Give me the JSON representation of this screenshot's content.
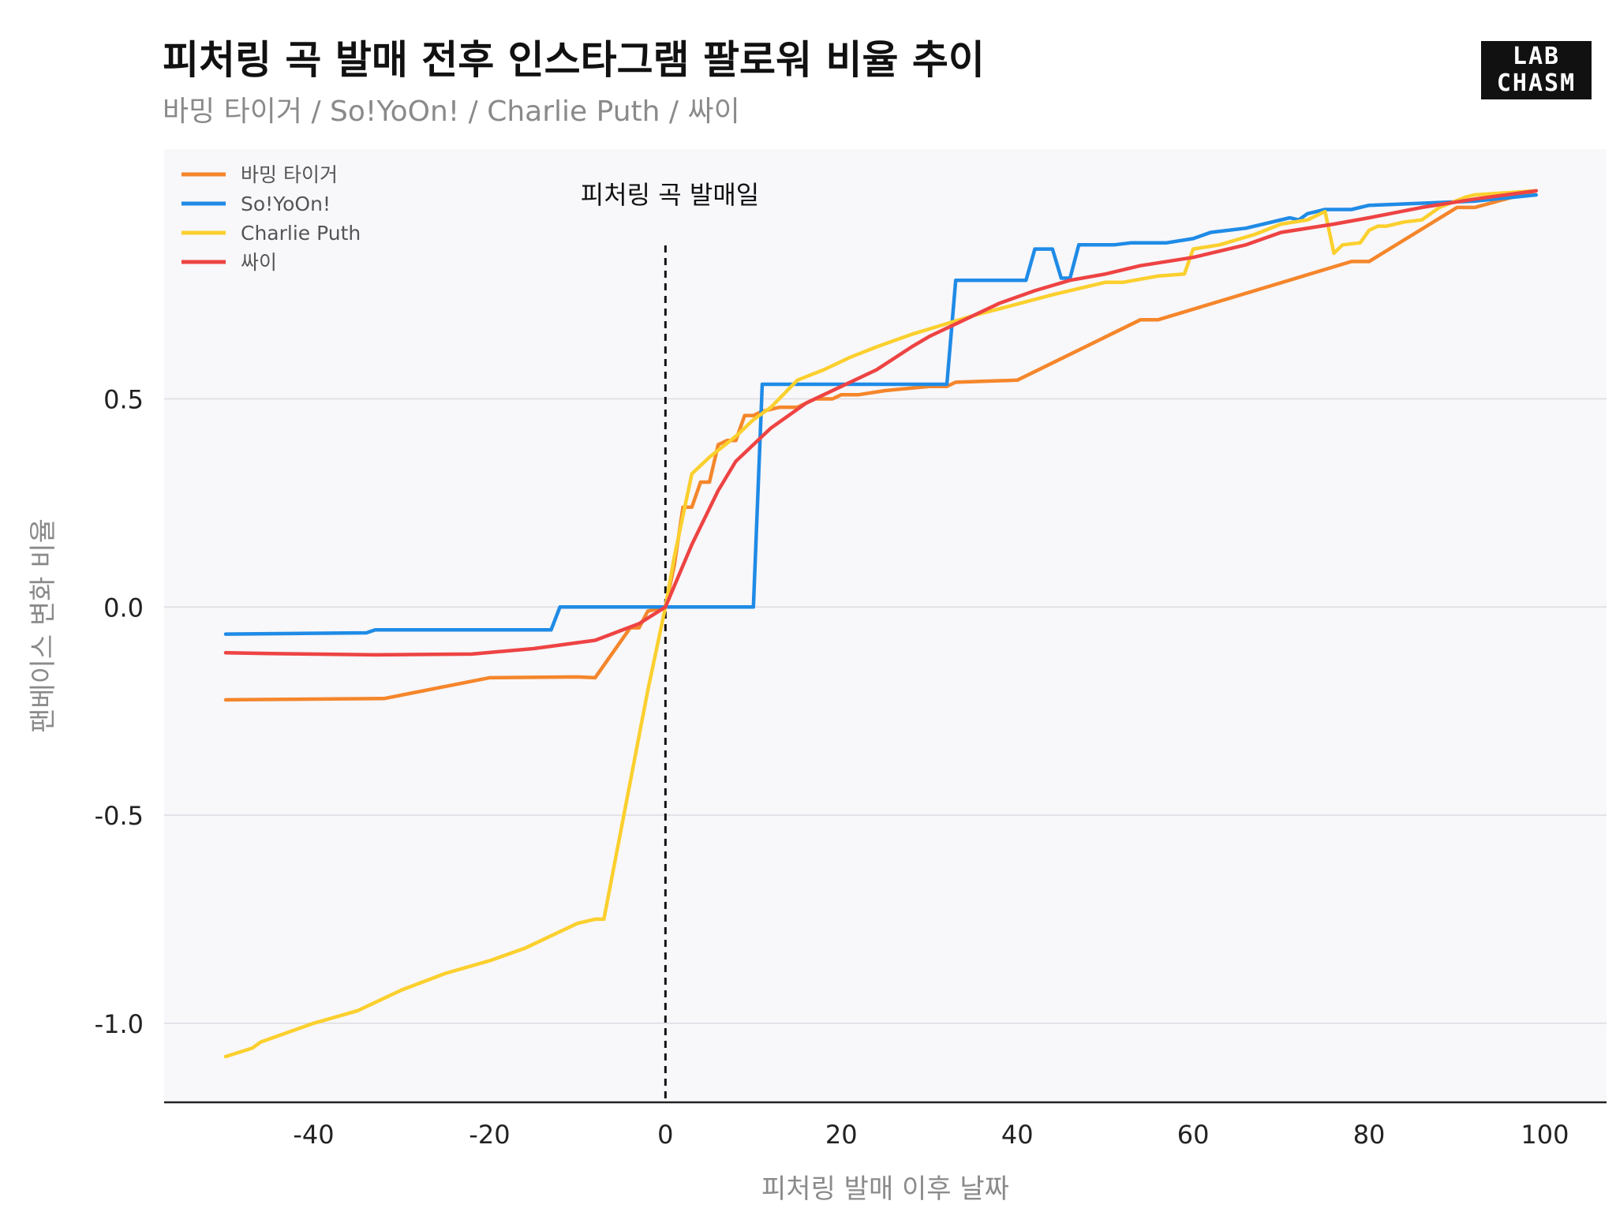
{
  "header": {
    "title": "피처링 곡 발매 전후 인스타그램 팔로워 비율 추이",
    "subtitle": "바밍 타이거 / So!YoOn! / Charlie Puth / 싸이"
  },
  "logo": {
    "line1": "LAB",
    "line2": "CHASM"
  },
  "colors": {
    "plot_bg": "#f8f7fa",
    "grid": "#dddbe2",
    "axis": "#222222",
    "tick_text": "#222222",
    "label_text": "#8a8a8a"
  },
  "chart_data": {
    "type": "line",
    "title": "피처링 곡 발매 전후 인스타그램 팔로워 비율 추이",
    "subtitle": "바밍 타이거 / So!YoOn! / Charlie Puth / 싸이",
    "xlabel": "피처링 발매 이후 날짜",
    "ylabel": "팬베이스 변화 비율",
    "xlim": [
      -57,
      107
    ],
    "ylim": [
      -1.19,
      1.1
    ],
    "xticks": [
      -40,
      -20,
      0,
      20,
      40,
      60,
      80,
      100
    ],
    "xtick_labels": [
      "-40",
      "-20",
      "0",
      "20",
      "40",
      "60",
      "80",
      "100"
    ],
    "yticks": [
      -1.0,
      -0.5,
      0.0,
      0.5
    ],
    "ytick_labels": [
      "-1.0",
      "-0.5",
      "0.0",
      "0.5"
    ],
    "grid": "horizontal",
    "legend_position": "top-left",
    "annotation": {
      "x": 0,
      "text": "피처링 곡 발매일",
      "style": "dashed-vertical-line"
    },
    "series": [
      {
        "name": "바밍 타이거",
        "color": "#f5862b",
        "points": [
          [
            -50,
            -0.223
          ],
          [
            -32,
            -0.22
          ],
          [
            -20,
            -0.17
          ],
          [
            -10,
            -0.168
          ],
          [
            -8,
            -0.17
          ],
          [
            -4,
            -0.05
          ],
          [
            -3,
            -0.05
          ],
          [
            -2,
            -0.01
          ],
          [
            0,
            0.0
          ],
          [
            1,
            0.1
          ],
          [
            2,
            0.24
          ],
          [
            3,
            0.24
          ],
          [
            4,
            0.3
          ],
          [
            5,
            0.3
          ],
          [
            6,
            0.39
          ],
          [
            7,
            0.4
          ],
          [
            8,
            0.4
          ],
          [
            9,
            0.46
          ],
          [
            10,
            0.46
          ],
          [
            11,
            0.47
          ],
          [
            13,
            0.48
          ],
          [
            15,
            0.48
          ],
          [
            17,
            0.5
          ],
          [
            19,
            0.5
          ],
          [
            20,
            0.51
          ],
          [
            22,
            0.51
          ],
          [
            25,
            0.52
          ],
          [
            30,
            0.53
          ],
          [
            32,
            0.53
          ],
          [
            33,
            0.54
          ],
          [
            40,
            0.545
          ],
          [
            54,
            0.69
          ],
          [
            56,
            0.69
          ],
          [
            78,
            0.83
          ],
          [
            80,
            0.83
          ],
          [
            90,
            0.96
          ],
          [
            92,
            0.96
          ],
          [
            99,
            1.0
          ]
        ]
      },
      {
        "name": "So!YoOn!",
        "color": "#1f8be6",
        "points": [
          [
            -50,
            -0.065
          ],
          [
            -34,
            -0.062
          ],
          [
            -33,
            -0.055
          ],
          [
            -13,
            -0.055
          ],
          [
            -12,
            0.0
          ],
          [
            10,
            0.0
          ],
          [
            11,
            0.535
          ],
          [
            32,
            0.535
          ],
          [
            33,
            0.785
          ],
          [
            41,
            0.785
          ],
          [
            42,
            0.86
          ],
          [
            44,
            0.86
          ],
          [
            45,
            0.79
          ],
          [
            46,
            0.79
          ],
          [
            47,
            0.87
          ],
          [
            51,
            0.87
          ],
          [
            53,
            0.875
          ],
          [
            57,
            0.875
          ],
          [
            60,
            0.885
          ],
          [
            62,
            0.9
          ],
          [
            66,
            0.91
          ],
          [
            71,
            0.935
          ],
          [
            72,
            0.93
          ],
          [
            73,
            0.945
          ],
          [
            75,
            0.955
          ],
          [
            78,
            0.955
          ],
          [
            80,
            0.965
          ],
          [
            92,
            0.975
          ],
          [
            99,
            0.99
          ]
        ]
      },
      {
        "name": "Charlie Puth",
        "color": "#fbd02e",
        "points": [
          [
            -50,
            -1.08
          ],
          [
            -47,
            -1.06
          ],
          [
            -46,
            -1.045
          ],
          [
            -40,
            -1.0
          ],
          [
            -35,
            -0.97
          ],
          [
            -30,
            -0.92
          ],
          [
            -25,
            -0.88
          ],
          [
            -20,
            -0.85
          ],
          [
            -16,
            -0.82
          ],
          [
            -12,
            -0.78
          ],
          [
            -10,
            -0.76
          ],
          [
            -8,
            -0.75
          ],
          [
            -7,
            -0.75
          ],
          [
            -2,
            -0.2
          ],
          [
            0,
            0.0
          ],
          [
            1,
            0.12
          ],
          [
            2,
            0.22
          ],
          [
            3,
            0.32
          ],
          [
            5,
            0.36
          ],
          [
            8,
            0.41
          ],
          [
            10,
            0.45
          ],
          [
            12,
            0.48
          ],
          [
            15,
            0.545
          ],
          [
            18,
            0.57
          ],
          [
            21,
            0.6
          ],
          [
            24,
            0.625
          ],
          [
            28,
            0.655
          ],
          [
            35,
            0.7
          ],
          [
            44,
            0.75
          ],
          [
            50,
            0.78
          ],
          [
            52,
            0.78
          ],
          [
            56,
            0.795
          ],
          [
            59,
            0.8
          ],
          [
            60,
            0.86
          ],
          [
            63,
            0.87
          ],
          [
            67,
            0.895
          ],
          [
            70,
            0.92
          ],
          [
            73,
            0.93
          ],
          [
            75,
            0.95
          ],
          [
            76,
            0.85
          ],
          [
            77,
            0.87
          ],
          [
            79,
            0.875
          ],
          [
            80,
            0.905
          ],
          [
            81,
            0.915
          ],
          [
            82,
            0.915
          ],
          [
            84,
            0.925
          ],
          [
            86,
            0.93
          ],
          [
            88,
            0.96
          ],
          [
            91,
            0.985
          ],
          [
            92,
            0.99
          ],
          [
            99,
            1.0
          ]
        ]
      },
      {
        "name": "싸이",
        "color": "#ee4343",
        "points": [
          [
            -50,
            -0.11
          ],
          [
            -45,
            -0.112
          ],
          [
            -33,
            -0.115
          ],
          [
            -22,
            -0.113
          ],
          [
            -15,
            -0.1
          ],
          [
            -8,
            -0.08
          ],
          [
            -3,
            -0.04
          ],
          [
            0,
            0.0
          ],
          [
            3,
            0.15
          ],
          [
            6,
            0.28
          ],
          [
            8,
            0.35
          ],
          [
            12,
            0.43
          ],
          [
            16,
            0.49
          ],
          [
            20,
            0.53
          ],
          [
            24,
            0.57
          ],
          [
            28,
            0.625
          ],
          [
            30,
            0.65
          ],
          [
            34,
            0.69
          ],
          [
            38,
            0.73
          ],
          [
            42,
            0.76
          ],
          [
            46,
            0.785
          ],
          [
            50,
            0.8
          ],
          [
            54,
            0.82
          ],
          [
            60,
            0.84
          ],
          [
            66,
            0.87
          ],
          [
            70,
            0.9
          ],
          [
            76,
            0.92
          ],
          [
            80,
            0.935
          ],
          [
            86,
            0.96
          ],
          [
            92,
            0.98
          ],
          [
            99,
            1.0
          ]
        ]
      }
    ]
  }
}
